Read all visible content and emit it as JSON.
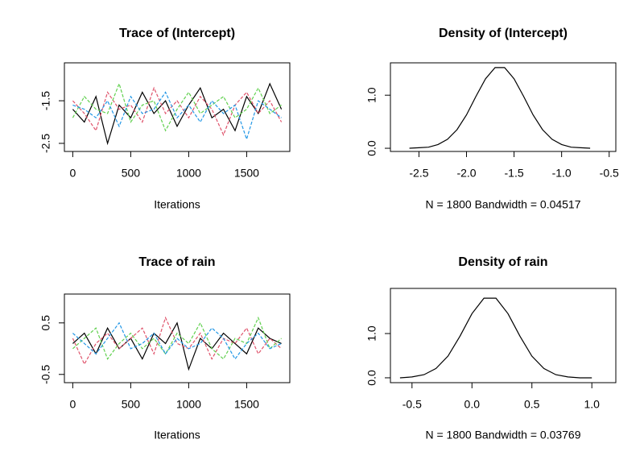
{
  "chart_data": [
    {
      "type": "line",
      "title": "Trace of (Intercept)",
      "xlabel": "Iterations",
      "x": [
        0,
        100,
        200,
        300,
        400,
        500,
        600,
        700,
        800,
        900,
        1000,
        1100,
        1200,
        1300,
        1400,
        1500,
        1600,
        1700,
        1800
      ],
      "series": [
        {
          "color": "#000000",
          "linestyle": "solid",
          "values": [
            -1.7,
            -2.0,
            -1.4,
            -2.5,
            -1.6,
            -1.9,
            -1.3,
            -1.8,
            -1.5,
            -2.1,
            -1.6,
            -1.2,
            -1.9,
            -1.7,
            -2.2,
            -1.4,
            -1.8,
            -1.1,
            -1.7
          ]
        },
        {
          "color": "#df536b",
          "linestyle": "dashed",
          "values": [
            -1.5,
            -1.8,
            -2.2,
            -1.3,
            -1.7,
            -1.6,
            -2.0,
            -1.2,
            -1.8,
            -1.5,
            -1.9,
            -1.4,
            -1.7,
            -2.3,
            -1.6,
            -1.3,
            -1.8,
            -1.5,
            -2.0
          ]
        },
        {
          "color": "#61d04f",
          "linestyle": "dashed",
          "values": [
            -1.9,
            -1.4,
            -1.7,
            -1.8,
            -1.1,
            -2.0,
            -1.6,
            -1.5,
            -2.2,
            -1.7,
            -1.3,
            -1.8,
            -1.6,
            -1.4,
            -1.9,
            -1.7,
            -1.2,
            -1.8,
            -1.6
          ]
        },
        {
          "color": "#2297e6",
          "linestyle": "dashed",
          "values": [
            -1.6,
            -1.7,
            -1.9,
            -1.5,
            -2.1,
            -1.4,
            -1.8,
            -1.7,
            -1.3,
            -1.9,
            -1.6,
            -2.0,
            -1.5,
            -1.8,
            -1.6,
            -2.4,
            -1.5,
            -1.7,
            -1.9
          ]
        }
      ],
      "xlim": [
        -72,
        1872
      ],
      "xticks": [
        0,
        500,
        1000,
        1500
      ],
      "ylim": [
        -2.69,
        -0.61
      ],
      "yticks": [
        -2.5,
        -1.5
      ]
    },
    {
      "type": "line",
      "title": "Density of (Intercept)",
      "xlabel": "N = 1800   Bandwidth = 0.04517",
      "x": [
        -2.6,
        -2.5,
        -2.4,
        -2.3,
        -2.2,
        -2.1,
        -2.0,
        -1.9,
        -1.8,
        -1.7,
        -1.6,
        -1.5,
        -1.4,
        -1.3,
        -1.2,
        -1.1,
        -1.0,
        -0.9,
        -0.8,
        -0.7
      ],
      "series": [
        {
          "color": "#000000",
          "linestyle": "solid",
          "values": [
            0.0,
            0.01,
            0.02,
            0.07,
            0.17,
            0.35,
            0.63,
            0.98,
            1.31,
            1.52,
            1.52,
            1.31,
            0.98,
            0.63,
            0.35,
            0.17,
            0.07,
            0.02,
            0.01,
            0.0
          ]
        }
      ],
      "xlim": [
        -2.8,
        -0.43
      ],
      "xticks": [
        -2.5,
        {
          "value": -2,
          "label": "-2.0"
        },
        -1.5,
        {
          "value": -1,
          "label": "-1.0"
        },
        -0.5
      ],
      "ylim": [
        -0.06,
        1.61
      ],
      "yticks": [
        {
          "value": 0,
          "label": "0.0"
        },
        {
          "value": 1,
          "label": "1.0"
        }
      ]
    },
    {
      "type": "line",
      "title": "Trace of rain",
      "xlabel": "Iterations",
      "x": [
        0,
        100,
        200,
        300,
        400,
        500,
        600,
        700,
        800,
        900,
        1000,
        1100,
        1200,
        1300,
        1400,
        1500,
        1600,
        1700,
        1800
      ],
      "series": [
        {
          "color": "#000000",
          "linestyle": "solid",
          "values": [
            0.1,
            0.3,
            -0.1,
            0.4,
            0.0,
            0.2,
            -0.2,
            0.3,
            0.1,
            0.5,
            -0.4,
            0.2,
            0.0,
            0.3,
            0.1,
            -0.1,
            0.4,
            0.2,
            0.1
          ]
        },
        {
          "color": "#df536b",
          "linestyle": "dashed",
          "values": [
            0.2,
            -0.3,
            0.1,
            0.3,
            0.0,
            0.2,
            0.4,
            -0.1,
            0.6,
            0.1,
            0.0,
            0.3,
            -0.2,
            0.2,
            0.1,
            0.4,
            -0.1,
            0.2,
            0.0
          ]
        },
        {
          "color": "#61d04f",
          "linestyle": "dashed",
          "values": [
            0.0,
            0.2,
            0.4,
            -0.2,
            0.1,
            0.3,
            0.0,
            0.2,
            -0.1,
            0.3,
            0.1,
            0.5,
            0.0,
            -0.2,
            0.2,
            0.1,
            0.6,
            0.0,
            0.2
          ]
        },
        {
          "color": "#2297e6",
          "linestyle": "dashed",
          "values": [
            0.3,
            0.1,
            -0.1,
            0.2,
            0.5,
            0.0,
            0.1,
            0.3,
            -0.1,
            0.2,
            0.0,
            0.1,
            0.4,
            0.2,
            -0.2,
            0.1,
            0.3,
            0.0,
            0.1
          ]
        }
      ],
      "xlim": [
        -72,
        1872
      ],
      "xticks": [
        0,
        500,
        1000,
        1500
      ],
      "ylim": [
        -0.66,
        1.06
      ],
      "yticks": [
        -0.5,
        0.5
      ]
    },
    {
      "type": "line",
      "title": "Density of rain",
      "xlabel": "N = 1800   Bandwidth = 0.03769",
      "x": [
        -0.6,
        -0.5,
        -0.4,
        -0.3,
        -0.2,
        -0.1,
        0,
        0.1,
        0.2,
        0.3,
        0.4,
        0.5,
        0.6,
        0.7,
        0.8,
        0.9,
        1.0
      ],
      "series": [
        {
          "color": "#000000",
          "linestyle": "solid",
          "values": [
            0.0,
            0.02,
            0.07,
            0.21,
            0.49,
            0.94,
            1.45,
            1.8,
            1.8,
            1.45,
            0.94,
            0.49,
            0.21,
            0.07,
            0.02,
            0.0,
            0.0
          ]
        }
      ],
      "xlim": [
        -0.68,
        1.2
      ],
      "xticks": [
        -0.5,
        {
          "value": 0,
          "label": "0.0"
        },
        0.5,
        {
          "value": 1,
          "label": "1.0"
        }
      ],
      "ylim": [
        -0.11,
        2.02
      ],
      "yticks": [
        {
          "value": 0,
          "label": "0.0"
        },
        {
          "value": 1,
          "label": "1.0"
        }
      ]
    }
  ]
}
